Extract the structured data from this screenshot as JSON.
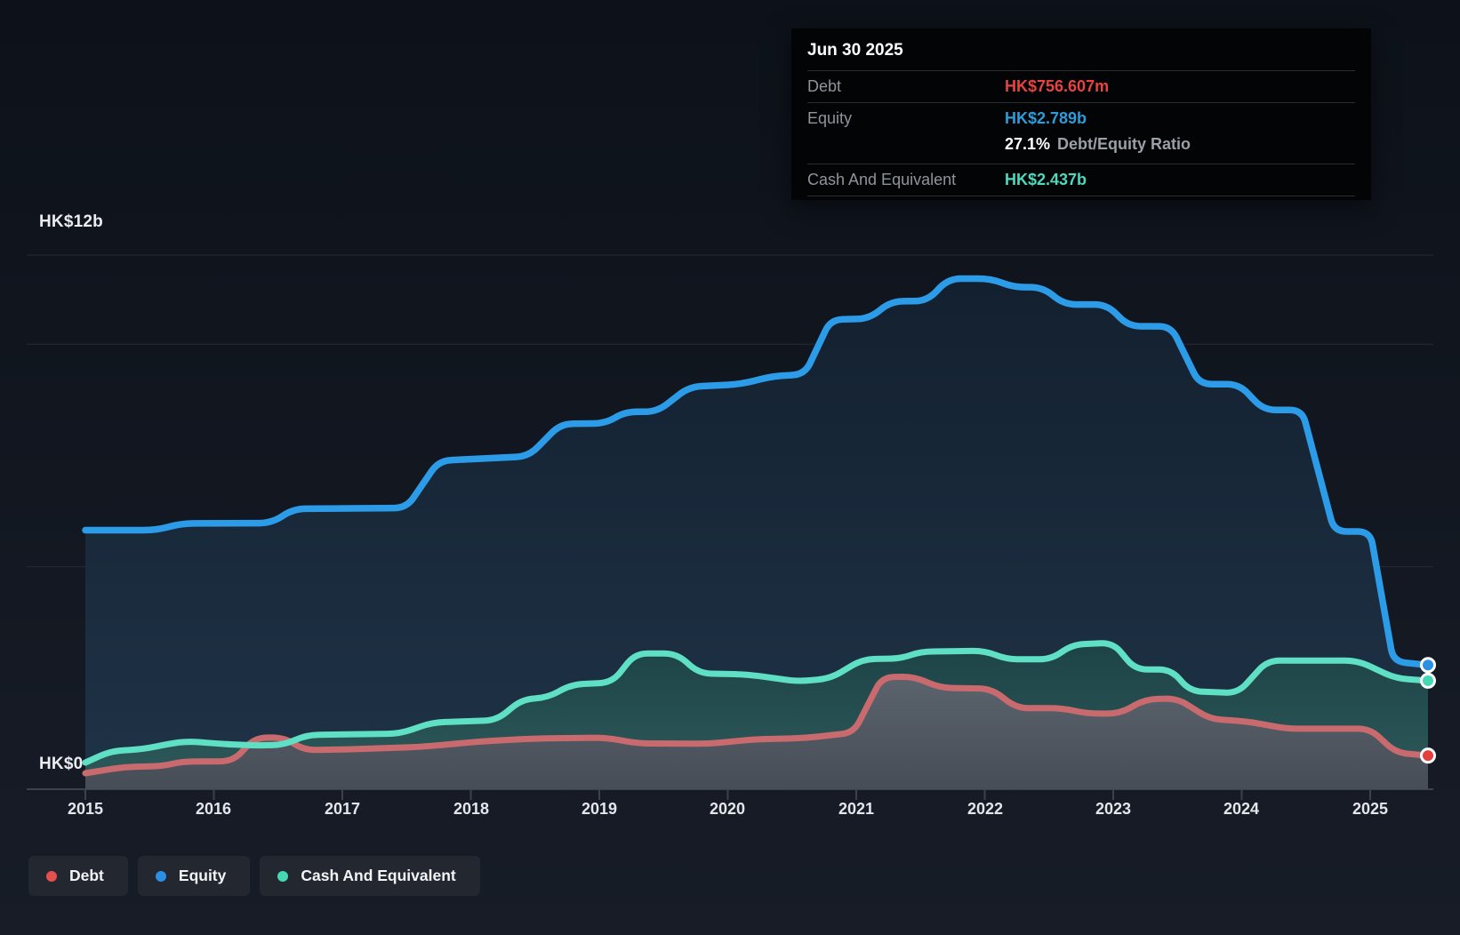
{
  "tooltip": {
    "date": "Jun 30 2025",
    "debt_label": "Debt",
    "debt_value": "HK$756.607m",
    "debt_color": "#e8433f",
    "equity_label": "Equity",
    "equity_value": "HK$2.789b",
    "equity_color": "#2d9cdb",
    "ratio_value": "27.1%",
    "ratio_label": "Debt/Equity Ratio",
    "cash_label": "Cash And Equivalent",
    "cash_value": "HK$2.437b",
    "cash_color": "#4fd9bc"
  },
  "axes": {
    "y_top_label": "HK$12b",
    "y_zero_label": "HK$0",
    "x_ticks": [
      "2015",
      "2016",
      "2017",
      "2018",
      "2019",
      "2020",
      "2021",
      "2022",
      "2023",
      "2024",
      "2025"
    ]
  },
  "legend": [
    {
      "label": "Debt",
      "color": "#e4504f"
    },
    {
      "label": "Equity",
      "color": "#2b8fe3"
    },
    {
      "label": "Cash And Equivalent",
      "color": "#46d7b4"
    }
  ],
  "chart_data": {
    "type": "area",
    "x_unit": "year",
    "x_range": [
      2015,
      2025.45
    ],
    "ylim": [
      0,
      12
    ],
    "y_currency": "HK$b",
    "gridline_values": [
      12,
      10,
      5
    ],
    "grid": "horizontal-only",
    "legend_position": "bottom-left",
    "last_point_date": "Jun 30 2025",
    "series": [
      {
        "name": "Equity",
        "final_value_label": "HK$2.789b",
        "color": "#2d9ce8",
        "dot_color": "#2b8fe3",
        "fill_top": "#13202f",
        "fill_bottom": "#1f3347",
        "points": [
          [
            2015.0,
            5.82
          ],
          [
            2015.55,
            5.82
          ],
          [
            2015.75,
            5.97
          ],
          [
            2016.45,
            5.98
          ],
          [
            2016.62,
            6.3
          ],
          [
            2017.5,
            6.32
          ],
          [
            2017.75,
            7.38
          ],
          [
            2018.45,
            7.48
          ],
          [
            2018.7,
            8.21
          ],
          [
            2019.05,
            8.22
          ],
          [
            2019.2,
            8.48
          ],
          [
            2019.45,
            8.48
          ],
          [
            2019.7,
            9.04
          ],
          [
            2020.1,
            9.1
          ],
          [
            2020.35,
            9.28
          ],
          [
            2020.6,
            9.32
          ],
          [
            2020.8,
            10.55
          ],
          [
            2021.1,
            10.57
          ],
          [
            2021.27,
            10.96
          ],
          [
            2021.55,
            10.97
          ],
          [
            2021.72,
            11.47
          ],
          [
            2022.05,
            11.47
          ],
          [
            2022.22,
            11.28
          ],
          [
            2022.45,
            11.28
          ],
          [
            2022.62,
            10.89
          ],
          [
            2022.95,
            10.89
          ],
          [
            2023.12,
            10.4
          ],
          [
            2023.45,
            10.4
          ],
          [
            2023.67,
            9.1
          ],
          [
            2023.98,
            9.1
          ],
          [
            2024.17,
            8.52
          ],
          [
            2024.47,
            8.52
          ],
          [
            2024.72,
            5.79
          ],
          [
            2025.0,
            5.79
          ],
          [
            2025.18,
            2.87
          ],
          [
            2025.45,
            2.789
          ]
        ]
      },
      {
        "name": "Cash And Equivalent",
        "final_value_label": "HK$2.437b",
        "color": "#5fdfc4",
        "dot_color": "#46d7b4",
        "fill_top": "#1d4347",
        "fill_bottom": "#2e5a5b",
        "points": [
          [
            2015.0,
            0.6
          ],
          [
            2015.2,
            0.86
          ],
          [
            2015.45,
            0.9
          ],
          [
            2015.65,
            1.02
          ],
          [
            2015.8,
            1.08
          ],
          [
            2016.05,
            1.02
          ],
          [
            2016.35,
            0.98
          ],
          [
            2016.55,
            1.0
          ],
          [
            2016.72,
            1.22
          ],
          [
            2017.45,
            1.25
          ],
          [
            2017.7,
            1.5
          ],
          [
            2018.2,
            1.55
          ],
          [
            2018.4,
            2.02
          ],
          [
            2018.6,
            2.06
          ],
          [
            2018.78,
            2.35
          ],
          [
            2019.1,
            2.4
          ],
          [
            2019.28,
            3.05
          ],
          [
            2019.6,
            3.05
          ],
          [
            2019.78,
            2.6
          ],
          [
            2020.15,
            2.58
          ],
          [
            2020.55,
            2.42
          ],
          [
            2020.8,
            2.49
          ],
          [
            2021.05,
            2.92
          ],
          [
            2021.35,
            2.94
          ],
          [
            2021.5,
            3.09
          ],
          [
            2022.0,
            3.11
          ],
          [
            2022.17,
            2.92
          ],
          [
            2022.52,
            2.92
          ],
          [
            2022.68,
            3.25
          ],
          [
            2023.0,
            3.29
          ],
          [
            2023.17,
            2.69
          ],
          [
            2023.45,
            2.69
          ],
          [
            2023.6,
            2.2
          ],
          [
            2023.97,
            2.16
          ],
          [
            2024.2,
            2.89
          ],
          [
            2024.9,
            2.89
          ],
          [
            2025.2,
            2.49
          ],
          [
            2025.45,
            2.437
          ]
        ]
      },
      {
        "name": "Debt",
        "final_value_label": "HK$756.607m",
        "color": "#c96b6e",
        "dot_color": "#e2403d",
        "fill_top": "#5b636d",
        "fill_bottom": "#464d57",
        "points": [
          [
            2015.0,
            0.36
          ],
          [
            2015.3,
            0.5
          ],
          [
            2015.6,
            0.52
          ],
          [
            2015.75,
            0.62
          ],
          [
            2016.15,
            0.63
          ],
          [
            2016.32,
            1.16
          ],
          [
            2016.55,
            1.16
          ],
          [
            2016.7,
            0.88
          ],
          [
            2017.1,
            0.9
          ],
          [
            2017.6,
            0.95
          ],
          [
            2018.1,
            1.08
          ],
          [
            2018.5,
            1.14
          ],
          [
            2019.05,
            1.16
          ],
          [
            2019.3,
            1.03
          ],
          [
            2019.85,
            1.02
          ],
          [
            2020.2,
            1.12
          ],
          [
            2020.6,
            1.15
          ],
          [
            2020.98,
            1.27
          ],
          [
            2021.2,
            2.52
          ],
          [
            2021.45,
            2.53
          ],
          [
            2021.65,
            2.28
          ],
          [
            2022.05,
            2.26
          ],
          [
            2022.25,
            1.82
          ],
          [
            2022.6,
            1.82
          ],
          [
            2022.8,
            1.7
          ],
          [
            2023.05,
            1.7
          ],
          [
            2023.25,
            2.02
          ],
          [
            2023.5,
            2.04
          ],
          [
            2023.75,
            1.58
          ],
          [
            2024.05,
            1.52
          ],
          [
            2024.35,
            1.36
          ],
          [
            2025.0,
            1.36
          ],
          [
            2025.2,
            0.82
          ],
          [
            2025.45,
            0.757
          ]
        ]
      }
    ]
  }
}
